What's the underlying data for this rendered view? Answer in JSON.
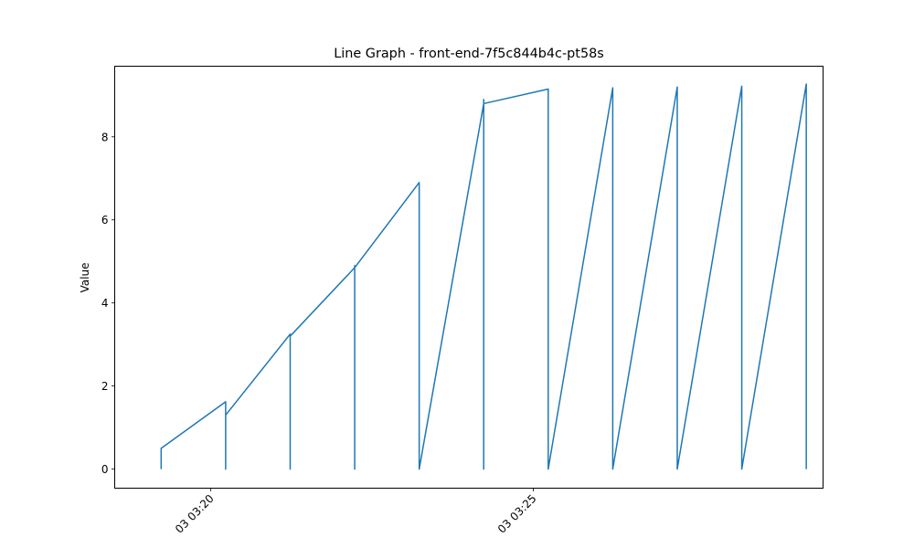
{
  "chart_data": {
    "type": "line",
    "title": "Line Graph - front-end-7f5c844b4c-pt58s",
    "xlabel": "",
    "ylabel": "Value",
    "xlim": [
      -0.72,
      10.26
    ],
    "ylim": [
      -0.46,
      9.7
    ],
    "xtick_values": [
      0.77,
      5.77
    ],
    "xtick_labels": [
      "03 03:20",
      "03 03:25"
    ],
    "ytick_values": [
      0,
      2,
      4,
      6,
      8
    ],
    "ytick_labels": [
      "0",
      "2",
      "4",
      "6",
      "8"
    ],
    "grid": false,
    "colors": {
      "line": "#1f77b4"
    },
    "series": [
      {
        "x": [
          0,
          0,
          1.0,
          1.0,
          1.0,
          1.0,
          1.0,
          2.0,
          2.0,
          2.0,
          2.0,
          3.0,
          3.0,
          3.0,
          3.0,
          3.0,
          3.0,
          3.0,
          4.0,
          4.0,
          4.0,
          5.0,
          5.0,
          5.0,
          5.0,
          6.0,
          6.0,
          6.0,
          7.0,
          7.0,
          7.0,
          8.0,
          8.0,
          8.0,
          9.0,
          9.0,
          9.0,
          10.0,
          10.0
        ],
        "y": [
          0.0,
          0.5,
          1.62,
          1.4,
          0.0,
          1.62,
          1.3,
          3.25,
          3.0,
          0.0,
          3.2,
          4.85,
          4.6,
          0.0,
          4.9,
          4.7,
          0.0,
          4.85,
          6.9,
          6.6,
          0.0,
          8.8,
          8.9,
          0.0,
          8.8,
          9.15,
          9.0,
          0.0,
          9.18,
          9.0,
          0.0,
          9.2,
          9.0,
          0.0,
          9.22,
          9.0,
          0.0,
          9.27,
          0.0
        ]
      }
    ]
  }
}
